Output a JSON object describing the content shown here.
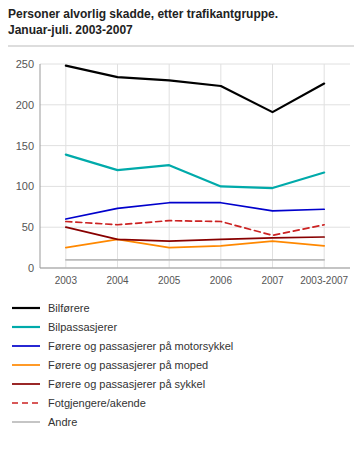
{
  "chart_data": {
    "type": "line",
    "title": "Personer alvorlig skadde, etter trafikantgruppe.",
    "subtitle": "Januar-juli. 2003-2007",
    "categories": [
      "2003",
      "2004",
      "2005",
      "2006",
      "2007",
      "2003-2007"
    ],
    "series": [
      {
        "name": "Bilførere",
        "color": "#000000",
        "line_style": "solid",
        "values": [
          248,
          234,
          230,
          223,
          191,
          226
        ]
      },
      {
        "name": "Bilpassasjerer",
        "color": "#00AAAA",
        "line_style": "solid",
        "values": [
          139,
          120,
          126,
          100,
          98,
          117
        ]
      },
      {
        "name": "Førere og passasjerer på motorsykkel",
        "color": "#0000CC",
        "line_style": "solid",
        "values": [
          60,
          73,
          80,
          80,
          70,
          72
        ]
      },
      {
        "name": "Førere og passasjerer på moped",
        "color": "#FF8800",
        "line_style": "solid",
        "values": [
          25,
          35,
          25,
          27,
          33,
          27
        ]
      },
      {
        "name": "Førere og passasjerer på sykkel",
        "color": "#880000",
        "line_style": "solid",
        "values": [
          50,
          35,
          33,
          35,
          37,
          38
        ]
      },
      {
        "name": "Fotgjengere/akende",
        "color": "#CC2222",
        "line_style": "dashed",
        "values": [
          57,
          53,
          58,
          57,
          40,
          53
        ]
      },
      {
        "name": "Andre",
        "color": "#BBBBBB",
        "line_style": "solid",
        "values": [
          10,
          10,
          10,
          10,
          10,
          10
        ]
      }
    ],
    "ylim": [
      0,
      250
    ],
    "yticks": [
      0,
      50,
      100,
      150,
      200,
      250
    ],
    "grid": true,
    "legend": "bottom"
  }
}
